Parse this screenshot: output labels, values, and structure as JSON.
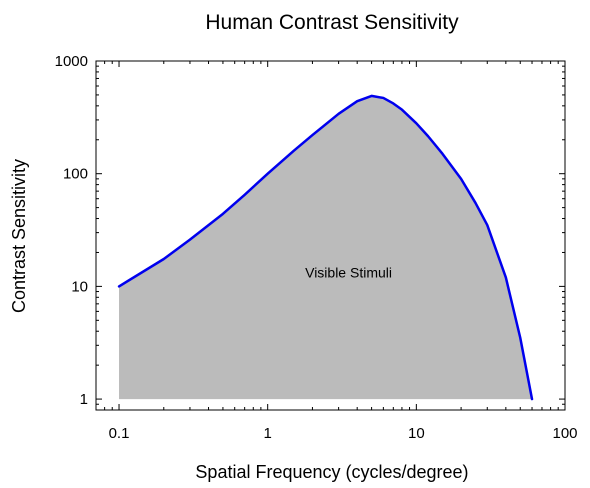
{
  "chart_data": {
    "type": "area",
    "title": "Human Contrast Sensitivity",
    "xlabel": "Spatial Frequency (cycles/degree)",
    "ylabel": "Contrast Sensitivity",
    "xscale": "log",
    "yscale": "log",
    "xlim": [
      0.07,
      100
    ],
    "ylim": [
      0.8,
      1000
    ],
    "grid": false,
    "legend": "none",
    "x_ticks": [
      {
        "value": 0.1,
        "label": "0.1"
      },
      {
        "value": 1,
        "label": "1"
      },
      {
        "value": 10,
        "label": "10"
      },
      {
        "value": 100,
        "label": "100"
      }
    ],
    "y_ticks": [
      {
        "value": 1,
        "label": "1"
      },
      {
        "value": 10,
        "label": "10"
      },
      {
        "value": 100,
        "label": "100"
      },
      {
        "value": 1000,
        "label": "1000"
      }
    ],
    "series": [
      {
        "color": "#0000ee",
        "fill_color": "#bbbbbb",
        "x": [
          0.1,
          0.2,
          0.3,
          0.5,
          0.7,
          1.0,
          1.5,
          2.0,
          3.0,
          4.0,
          5.0,
          6.0,
          7.0,
          8.0,
          10.0,
          12.0,
          15.0,
          20.0,
          25.0,
          30.0,
          40.0,
          50.0,
          60.0
        ],
        "y": [
          10,
          17.5,
          26,
          44,
          65,
          100,
          160,
          220,
          340,
          440,
          490,
          470,
          420,
          370,
          280,
          215,
          150,
          90,
          55,
          35,
          12,
          3.5,
          1
        ]
      }
    ],
    "annotations": [
      {
        "text": "Visible Stimuli",
        "x": 3.5,
        "y": 12
      }
    ]
  }
}
